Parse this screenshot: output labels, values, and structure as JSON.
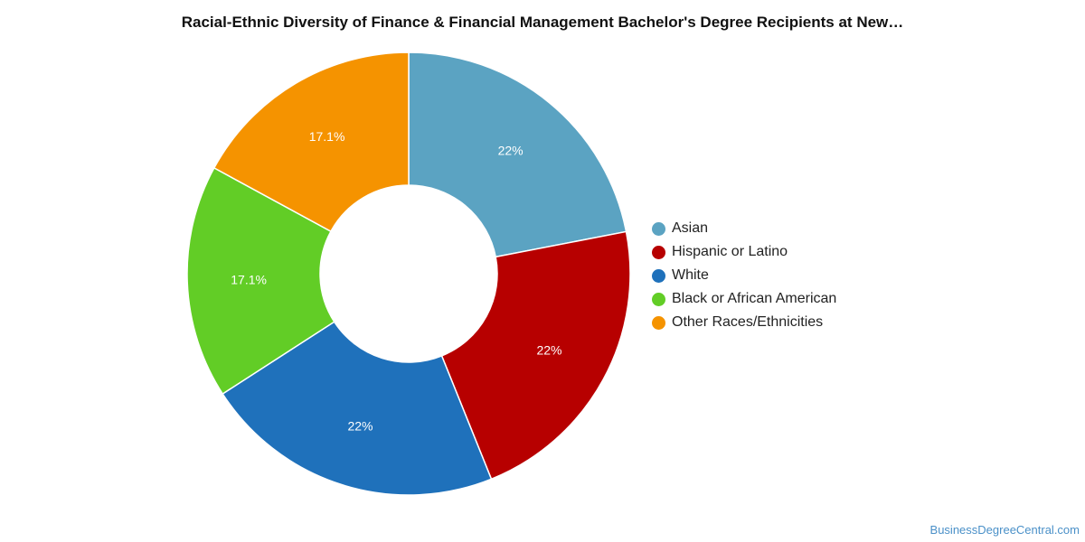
{
  "chart_data": {
    "type": "pie",
    "title": "Racial-Ethnic Diversity of Finance & Financial Management Bachelor's Degree Recipients at New…",
    "donut": true,
    "legend_position": "right",
    "slices": [
      {
        "name": "Asian",
        "value": 22,
        "label": "22%",
        "color": "#5ba3c2"
      },
      {
        "name": "Hispanic or Latino",
        "value": 22,
        "label": "22%",
        "color": "#b70000"
      },
      {
        "name": "White",
        "value": 22,
        "label": "22%",
        "color": "#1f71bb"
      },
      {
        "name": "Black or African American",
        "value": 17.1,
        "label": "17.1%",
        "color": "#62cd26"
      },
      {
        "name": "Other Races/Ethnicities",
        "value": 17.1,
        "label": "17.1%",
        "color": "#f59300"
      }
    ]
  },
  "watermark": "BusinessDegreeCentral.com"
}
